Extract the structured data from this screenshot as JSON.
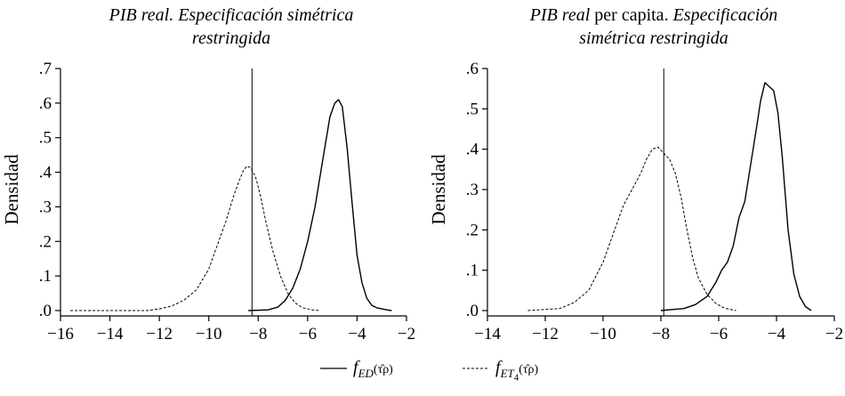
{
  "figure": {
    "legend": {
      "solid_label": "f",
      "solid_sub": "ED",
      "solid_arg": "(τ̂ρ)",
      "dashed_label": "f",
      "dashed_sub": "ET",
      "dashed_subsub": "4",
      "dashed_arg": "(τ̂ρ)"
    }
  },
  "chart_data": [
    {
      "type": "line",
      "title_part1": "PIB",
      "title_part2": " real. Especificación simétrica",
      "title_line2": "restringida",
      "ylabel": "Densidad",
      "xlabel": "",
      "xlim": [
        -16,
        -2
      ],
      "ylim": [
        0,
        0.7
      ],
      "xticks": [
        -16,
        -14,
        -12,
        -10,
        -8,
        -6,
        -4,
        -2
      ],
      "xtick_labels": [
        "−16",
        "−14",
        "−12",
        "−10",
        "−8",
        "−6",
        "−4",
        "−2"
      ],
      "yticks": [
        0,
        0.1,
        0.2,
        0.3,
        0.4,
        0.5,
        0.6,
        0.7
      ],
      "ytick_labels": [
        ".0",
        ".1",
        ".2",
        ".3",
        ".4",
        ".5",
        ".6",
        ".7"
      ],
      "vline": -8.25,
      "series": [
        {
          "name": "f_ED",
          "style": "solid",
          "x": [
            -8.4,
            -7.6,
            -7.2,
            -6.9,
            -6.6,
            -6.3,
            -6.0,
            -5.7,
            -5.4,
            -5.1,
            -4.9,
            -4.75,
            -4.6,
            -4.4,
            -4.2,
            -4.0,
            -3.8,
            -3.6,
            -3.4,
            -3.2,
            -3.0,
            -2.8,
            -2.6
          ],
          "y": [
            0.0,
            0.002,
            0.01,
            0.03,
            0.065,
            0.12,
            0.2,
            0.3,
            0.43,
            0.56,
            0.6,
            0.61,
            0.59,
            0.47,
            0.31,
            0.16,
            0.08,
            0.035,
            0.015,
            0.008,
            0.005,
            0.002,
            0.0
          ]
        },
        {
          "name": "f_ET4",
          "style": "dashed",
          "x": [
            -15.6,
            -12.5,
            -12.0,
            -11.5,
            -11.0,
            -10.5,
            -10.0,
            -9.6,
            -9.3,
            -9.0,
            -8.8,
            -8.6,
            -8.45,
            -8.3,
            -8.1,
            -7.9,
            -7.7,
            -7.4,
            -7.1,
            -6.8,
            -6.5,
            -6.2,
            -5.8,
            -5.5
          ],
          "y": [
            0.0,
            0.0,
            0.005,
            0.013,
            0.03,
            0.06,
            0.12,
            0.2,
            0.26,
            0.33,
            0.37,
            0.405,
            0.418,
            0.413,
            0.385,
            0.33,
            0.26,
            0.17,
            0.1,
            0.05,
            0.022,
            0.008,
            0.002,
            0.0
          ]
        }
      ]
    },
    {
      "type": "line",
      "title_part1": "PIB",
      "title_part2": " real",
      "title_part3": " per capita. ",
      "title_part4": "Especificación",
      "title_line2": "simétrica restringida",
      "ylabel": "Densidad",
      "xlabel": "",
      "xlim": [
        -14,
        -2
      ],
      "ylim": [
        0,
        0.6
      ],
      "xticks": [
        -14,
        -12,
        -10,
        -8,
        -6,
        -4,
        -2
      ],
      "xtick_labels": [
        "−14",
        "−12",
        "−10",
        "−8",
        "−6",
        "−4",
        "−2"
      ],
      "yticks": [
        0,
        0.1,
        0.2,
        0.3,
        0.4,
        0.5,
        0.6
      ],
      "ytick_labels": [
        ".0",
        ".1",
        ".2",
        ".3",
        ".4",
        ".5",
        ".6"
      ],
      "vline": -7.9,
      "series": [
        {
          "name": "f_ED",
          "style": "solid",
          "x": [
            -8.0,
            -7.2,
            -6.8,
            -6.4,
            -6.1,
            -5.9,
            -5.7,
            -5.5,
            -5.3,
            -5.1,
            -4.9,
            -4.7,
            -4.55,
            -4.4,
            -4.25,
            -4.1,
            -3.95,
            -3.8,
            -3.6,
            -3.4,
            -3.2,
            -3.0,
            -2.8
          ],
          "y": [
            0.0,
            0.005,
            0.015,
            0.035,
            0.07,
            0.1,
            0.12,
            0.16,
            0.23,
            0.27,
            0.36,
            0.45,
            0.52,
            0.565,
            0.555,
            0.545,
            0.49,
            0.38,
            0.2,
            0.09,
            0.035,
            0.01,
            0.0
          ]
        },
        {
          "name": "f_ET4",
          "style": "dashed",
          "x": [
            -12.6,
            -11.5,
            -11.0,
            -10.5,
            -10.0,
            -9.6,
            -9.3,
            -9.0,
            -8.7,
            -8.5,
            -8.3,
            -8.1,
            -7.9,
            -7.7,
            -7.5,
            -7.3,
            -7.1,
            -6.9,
            -6.7,
            -6.4,
            -6.1,
            -5.8,
            -5.4
          ],
          "y": [
            0.0,
            0.005,
            0.02,
            0.05,
            0.12,
            0.2,
            0.26,
            0.3,
            0.34,
            0.375,
            0.4,
            0.405,
            0.39,
            0.375,
            0.34,
            0.28,
            0.2,
            0.13,
            0.08,
            0.04,
            0.018,
            0.006,
            0.0
          ]
        }
      ]
    }
  ]
}
